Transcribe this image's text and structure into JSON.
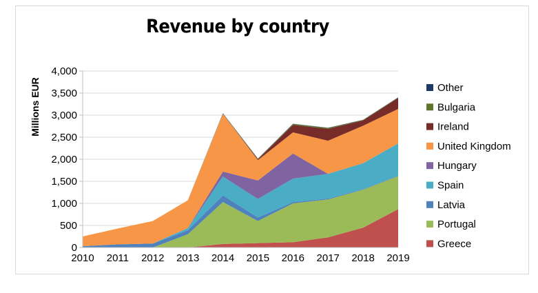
{
  "chart_data": {
    "type": "area",
    "stacked": true,
    "title": "Revenue by country",
    "xlabel": "",
    "ylabel": "Millions EUR",
    "x": [
      "2010",
      "2011",
      "2012",
      "2013",
      "2014",
      "2015",
      "2016",
      "2017",
      "2018",
      "2019"
    ],
    "ylim": [
      0,
      4000
    ],
    "yticks": [
      0,
      500,
      1000,
      1500,
      2000,
      2500,
      3000,
      3500,
      4000
    ],
    "ytick_labels": [
      "0",
      "500",
      "1,000",
      "1,500",
      "2,000",
      "2,500",
      "3,000",
      "3,500",
      "4,000"
    ],
    "grid": true,
    "legend_position": "right",
    "series": [
      {
        "name": "Greece",
        "color": "#c0504d",
        "values": [
          0,
          0,
          0,
          0,
          80,
          100,
          120,
          230,
          450,
          870
        ]
      },
      {
        "name": "Portugal",
        "color": "#9bbb59",
        "values": [
          0,
          0,
          0,
          300,
          950,
          500,
          880,
          860,
          860,
          750
        ]
      },
      {
        "name": "Latvia",
        "color": "#4f81bd",
        "values": [
          30,
          70,
          90,
          90,
          150,
          80,
          30,
          20,
          10,
          10
        ]
      },
      {
        "name": "Spain",
        "color": "#4bacc6",
        "values": [
          0,
          0,
          0,
          50,
          430,
          420,
          530,
          560,
          590,
          730
        ]
      },
      {
        "name": "Hungary",
        "color": "#8064a2",
        "values": [
          0,
          0,
          0,
          0,
          110,
          420,
          570,
          0,
          0,
          0
        ]
      },
      {
        "name": "United Kingdom",
        "color": "#f79646",
        "values": [
          220,
          360,
          510,
          630,
          1310,
          460,
          480,
          750,
          850,
          780
        ]
      },
      {
        "name": "Ireland",
        "color": "#772c2a",
        "values": [
          0,
          0,
          0,
          0,
          0,
          20,
          170,
          270,
          120,
          250
        ]
      },
      {
        "name": "Bulgaria",
        "color": "#5f7530",
        "values": [
          0,
          0,
          0,
          0,
          10,
          10,
          20,
          20,
          10,
          10
        ]
      },
      {
        "name": "Other",
        "color": "#1f3864",
        "values": [
          0,
          0,
          0,
          0,
          5,
          5,
          5,
          5,
          5,
          5
        ]
      }
    ]
  }
}
